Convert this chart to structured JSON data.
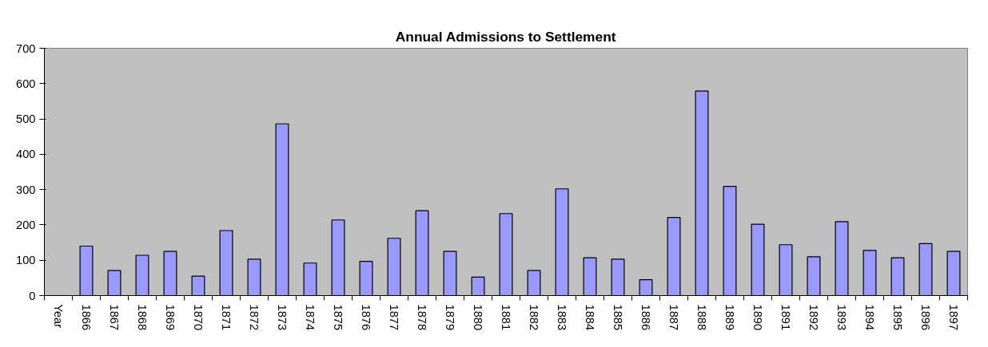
{
  "chart_data": {
    "type": "bar",
    "title": "Annual Admissions to Settlement",
    "categories": [
      "Year",
      "1866",
      "1867",
      "1868",
      "1869",
      "1870",
      "1871",
      "1872",
      "1873",
      "1874",
      "1875",
      "1876",
      "1877",
      "1878",
      "1879",
      "1880",
      "1881",
      "1882",
      "1883",
      "1884",
      "1885",
      "1886",
      "1887",
      "1888",
      "1889",
      "1890",
      "1891",
      "1892",
      "1893",
      "1894",
      "1895",
      "1896",
      "1897"
    ],
    "values": [
      null,
      140,
      71,
      114,
      125,
      55,
      184,
      103,
      486,
      92,
      214,
      97,
      162,
      240,
      125,
      52,
      232,
      71,
      302,
      107,
      103,
      45,
      221,
      579,
      309,
      202,
      144,
      110,
      209,
      128,
      107,
      147,
      125
    ],
    "color": "#9999ff",
    "ylim": [
      0,
      700
    ],
    "yticks": [
      0,
      100,
      200,
      300,
      400,
      500,
      600,
      700
    ],
    "grid": false
  }
}
